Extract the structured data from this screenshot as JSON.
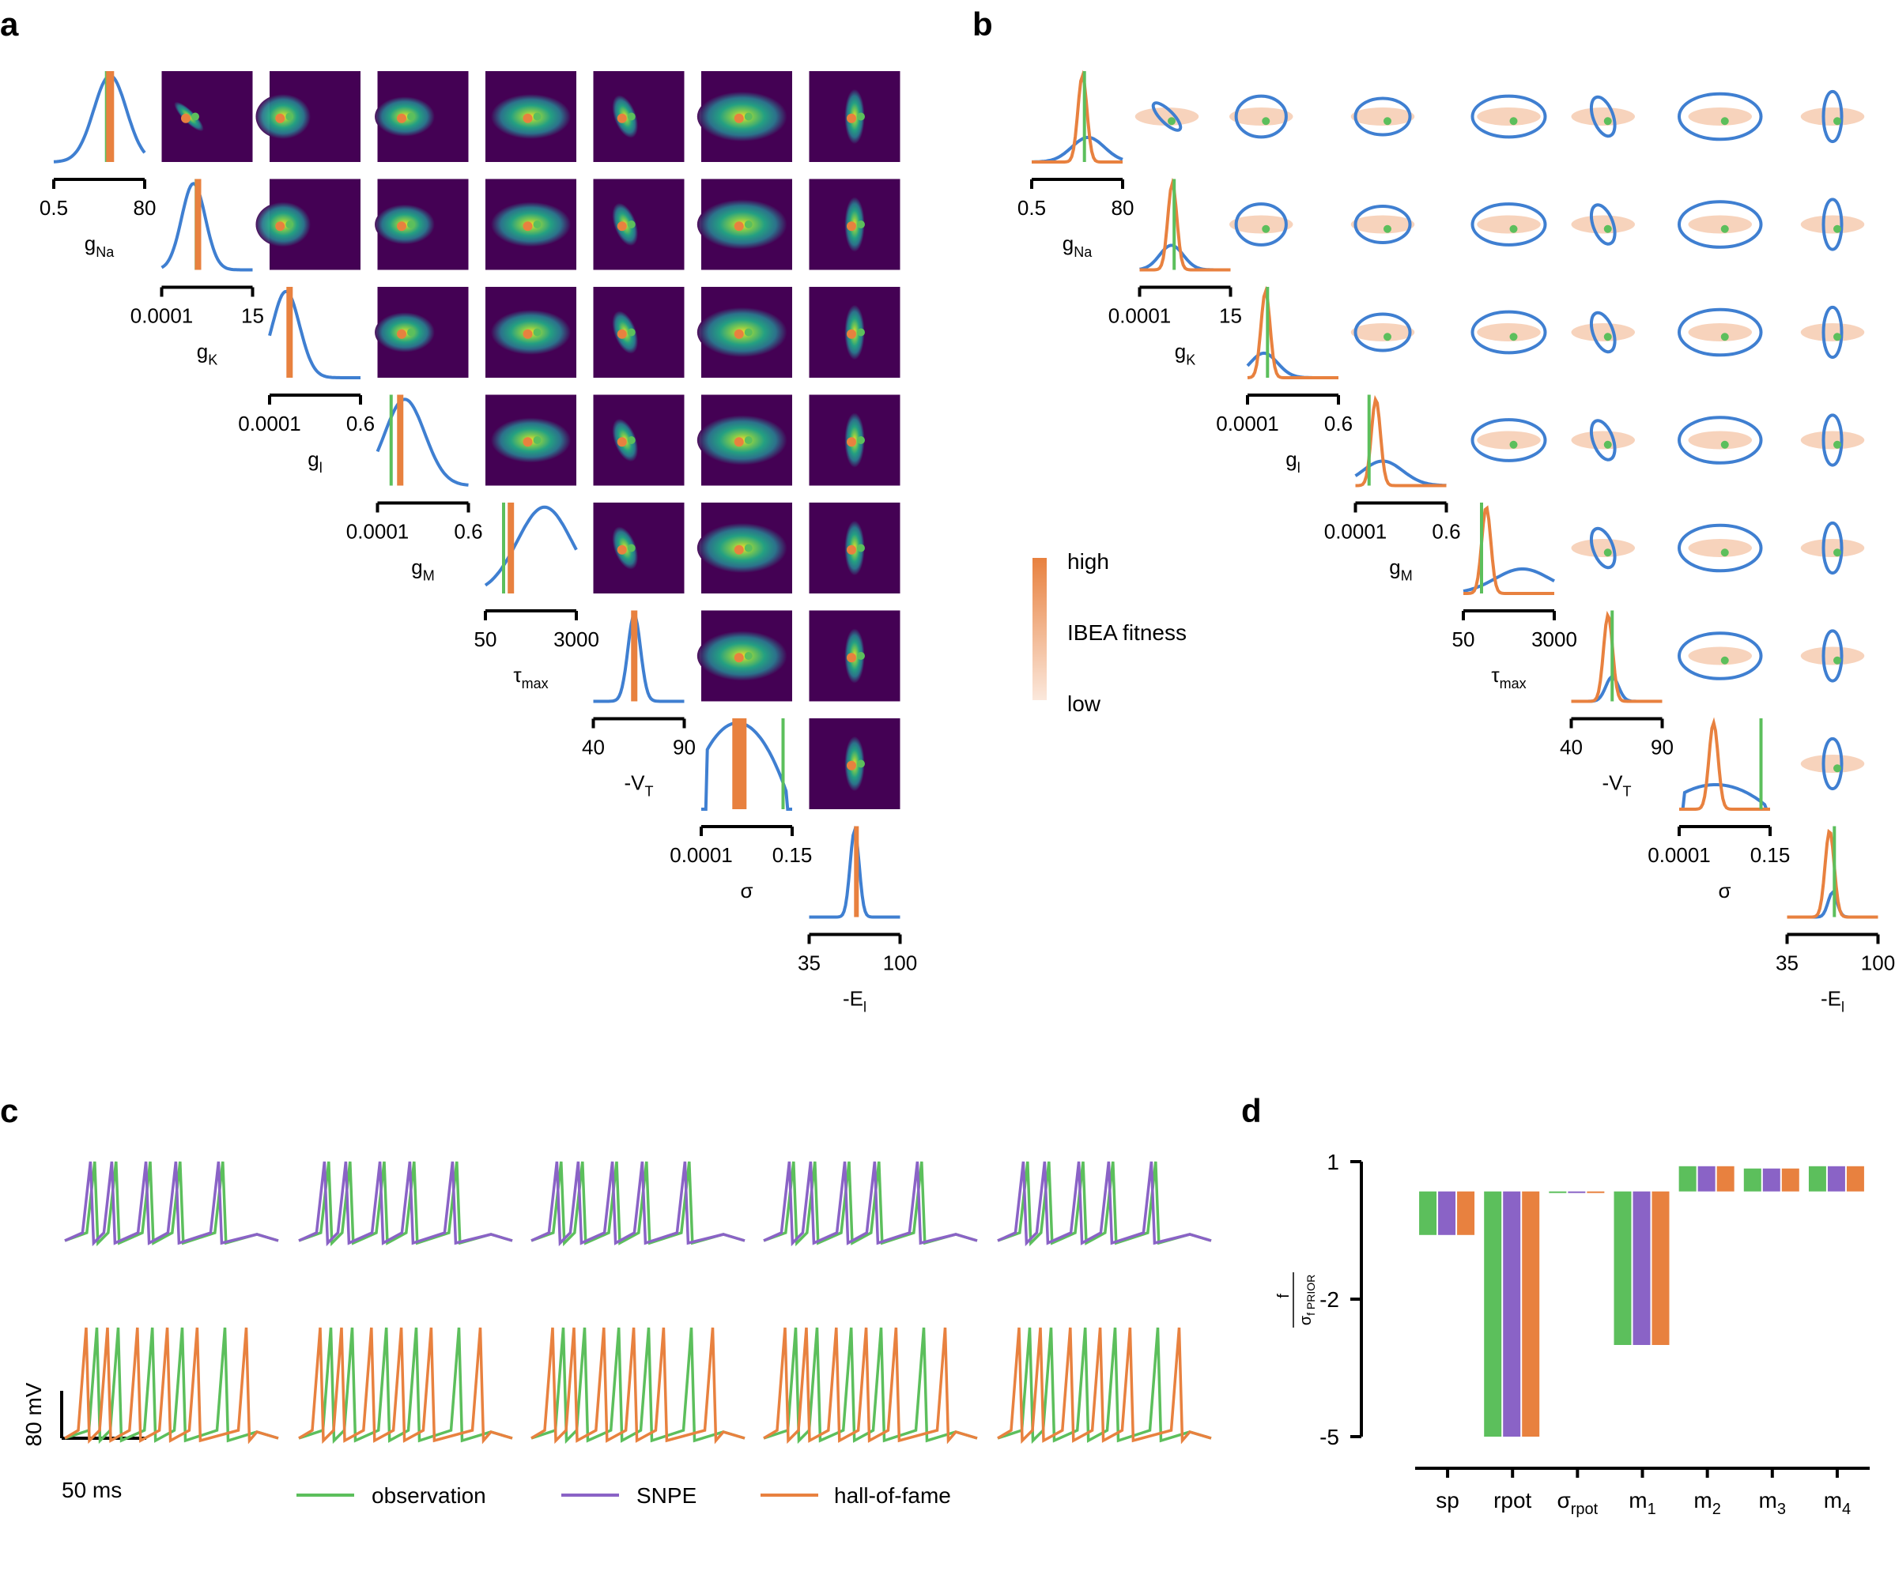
{
  "panel_labels": [
    "a",
    "b",
    "c",
    "d"
  ],
  "colors": {
    "observation": "#5cbf5c",
    "snpe": "#8a63c6",
    "hall_of_fame": "#e8813f",
    "posterior_line": "#3f7fd1",
    "viridis_low": "#440154",
    "viridis_high": "#fde725"
  },
  "parameters": [
    {
      "symbol": "g",
      "sub": "Na",
      "range": [
        "0.5",
        "80"
      ]
    },
    {
      "symbol": "g",
      "sub": "K",
      "range": [
        "0.0001",
        "15"
      ]
    },
    {
      "symbol": "g",
      "sub": "l",
      "range": [
        "0.0001",
        "0.6"
      ]
    },
    {
      "symbol": "g",
      "sub": "M",
      "range": [
        "0.0001",
        "0.6"
      ]
    },
    {
      "symbol": "τ",
      "sub": "max",
      "range": [
        "50",
        "3000"
      ]
    },
    {
      "symbol": "-V",
      "sub": "T",
      "range": [
        "40",
        "90"
      ]
    },
    {
      "symbol": "σ",
      "sub": "",
      "range": [
        "0.0001",
        "0.15"
      ]
    },
    {
      "symbol": "-E",
      "sub": "l",
      "range": [
        "35",
        "100"
      ]
    }
  ],
  "colorbar": {
    "top_label": "high",
    "mid_label": "IBEA fitness",
    "bottom_label": "low"
  },
  "traces": {
    "scalebar_v": "80 mV",
    "scalebar_h": "50 ms",
    "legend": [
      "observation",
      "SNPE",
      "hall-of-fame"
    ]
  },
  "chart_data": {
    "type": "bar",
    "ylabel_num": "f",
    "ylabel_den": "σ",
    "ylabel_den_sub": "f PRIOR",
    "yticks": [
      "1",
      "-2",
      "-5"
    ],
    "ylim": [
      -5,
      1
    ],
    "categories": [
      {
        "base": "sp",
        "sub": ""
      },
      {
        "base": "rpot",
        "sub": ""
      },
      {
        "base": "σ",
        "sub": "rpot"
      },
      {
        "base": "m",
        "sub": "1"
      },
      {
        "base": "m",
        "sub": "2"
      },
      {
        "base": "m",
        "sub": "3"
      },
      {
        "base": "m",
        "sub": "4"
      }
    ],
    "series": [
      {
        "name": "observation",
        "values": [
          -0.6,
          -5.0,
          0.0,
          -3.0,
          0.9,
          0.85,
          0.9
        ]
      },
      {
        "name": "SNPE",
        "values": [
          -0.6,
          -5.0,
          0.0,
          -3.0,
          0.9,
          0.85,
          0.9
        ]
      },
      {
        "name": "hall-of-fame",
        "values": [
          -0.6,
          -5.0,
          0.0,
          -3.0,
          0.9,
          0.85,
          0.9
        ]
      }
    ]
  }
}
